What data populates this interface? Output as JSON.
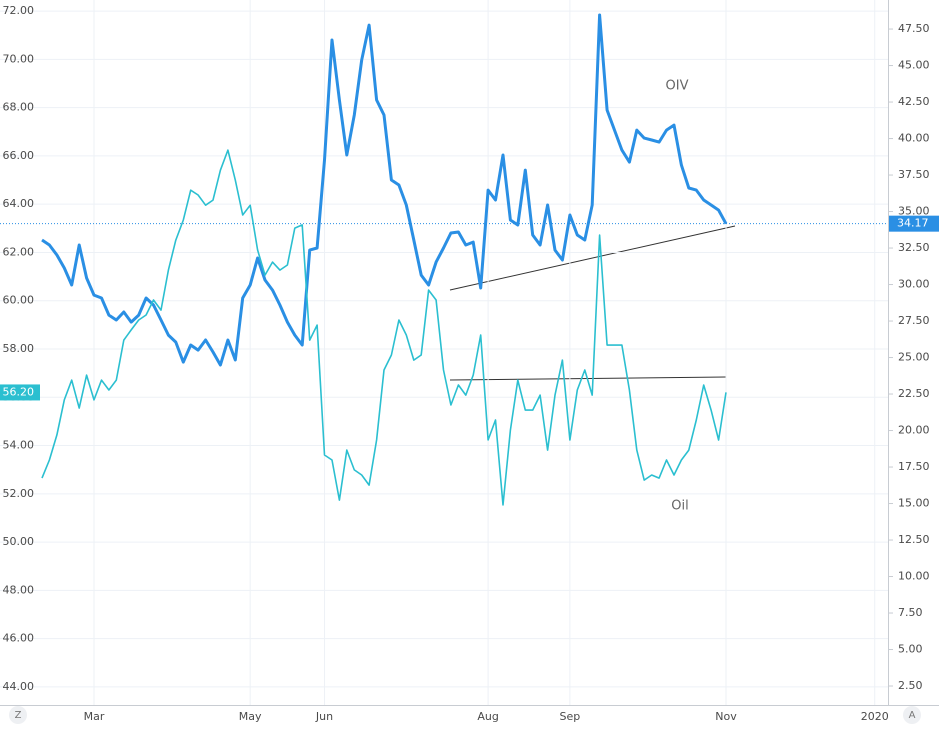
{
  "chart_data": {
    "type": "line",
    "categories": [
      null,
      null,
      null,
      null,
      null,
      null,
      null,
      "Mar",
      null,
      null,
      null,
      null,
      null,
      null,
      null,
      null,
      null,
      null,
      null,
      null,
      null,
      null,
      null,
      null,
      null,
      null,
      null,
      null,
      "May",
      null,
      null,
      null,
      null,
      null,
      null,
      null,
      null,
      null,
      "Jun",
      null,
      null,
      null,
      null,
      null,
      null,
      null,
      null,
      null,
      null,
      null,
      null,
      null,
      null,
      null,
      null,
      null,
      null,
      null,
      null,
      null,
      "Aug",
      null,
      null,
      null,
      null,
      null,
      null,
      null,
      null,
      null,
      null,
      "Sep",
      null,
      null,
      null,
      null,
      null,
      null,
      null,
      null,
      null,
      null,
      null,
      null,
      null,
      null,
      null,
      null,
      null,
      null,
      null,
      null,
      "Nov",
      null,
      null,
      null,
      null,
      null,
      null,
      null,
      null,
      null,
      null,
      null,
      null,
      null,
      null,
      null,
      null,
      null,
      null,
      null,
      "2020",
      null
    ],
    "series": [
      {
        "name": "OIV",
        "color": "#2a8fe4",
        "axis": "y2",
        "values": [
          33.05,
          32.71,
          32.02,
          31.13,
          29.97,
          32.71,
          30.45,
          29.28,
          29.08,
          27.91,
          27.57,
          28.12,
          27.43,
          27.91,
          29.08,
          28.6,
          27.57,
          26.54,
          26.06,
          24.69,
          25.86,
          25.51,
          26.2,
          25.38,
          24.49,
          26.2,
          24.83,
          29.08,
          29.97,
          31.82,
          30.31,
          29.62,
          28.6,
          27.43,
          26.54,
          25.86,
          32.36,
          32.5,
          38.53,
          46.75,
          42.64,
          38.87,
          41.61,
          45.38,
          47.77,
          42.64,
          41.61,
          37.16,
          36.82,
          35.45,
          33.05,
          30.65,
          29.97,
          31.54,
          32.5,
          33.53,
          33.6,
          32.71,
          32.91,
          29.76,
          36.47,
          35.79,
          38.87,
          34.42,
          34.08,
          37.84,
          33.39,
          32.71,
          35.45,
          32.36,
          31.68,
          34.76,
          33.39,
          33.05,
          35.45,
          48.46,
          41.95,
          40.58,
          39.21,
          38.39,
          40.58,
          40.03,
          39.9,
          39.76,
          40.58,
          40.92,
          38.18,
          36.61,
          36.47,
          35.79,
          35.45,
          35.1,
          34.17,
          null,
          null,
          null,
          null,
          null,
          null,
          null,
          null,
          null,
          null,
          null,
          null,
          null,
          null,
          null,
          null,
          null,
          null,
          null,
          null,
          null
        ]
      },
      {
        "name": "Oil",
        "color": "#2bbfd0",
        "axis": "y",
        "values": [
          52.65,
          53.4,
          54.44,
          55.89,
          56.71,
          55.55,
          56.92,
          55.89,
          56.71,
          56.3,
          56.71,
          58.37,
          58.79,
          59.2,
          59.41,
          60.03,
          59.61,
          61.27,
          62.51,
          63.34,
          64.58,
          64.38,
          63.96,
          64.17,
          65.41,
          66.24,
          65.0,
          63.55,
          63.96,
          62.1,
          61.06,
          61.6,
          61.27,
          61.48,
          63.01,
          63.14,
          58.37,
          58.99,
          53.61,
          53.4,
          51.74,
          53.81,
          52.99,
          52.78,
          52.36,
          54.23,
          57.13,
          57.75,
          59.2,
          58.58,
          57.54,
          57.75,
          60.44,
          60.03,
          57.13,
          55.68,
          56.51,
          56.09,
          56.92,
          58.58,
          54.23,
          55.06,
          51.54,
          54.64,
          56.71,
          55.47,
          55.47,
          56.09,
          53.81,
          56.09,
          57.54,
          54.23,
          56.3,
          57.13,
          56.09,
          62.72,
          58.16,
          58.16,
          58.16,
          56.3,
          53.81,
          52.57,
          52.78,
          52.65,
          53.4,
          52.78,
          53.4,
          53.81,
          55.06,
          56.51,
          55.47,
          54.23,
          56.2,
          null,
          null,
          null,
          null,
          null,
          null,
          null,
          null,
          null,
          null,
          null,
          null,
          null,
          null,
          null,
          null,
          null,
          null,
          null,
          null,
          null
        ],
        "value_labels": [
          null,
          null,
          null,
          null,
          null,
          null,
          null,
          null,
          null,
          null,
          null,
          null,
          null,
          null,
          null,
          null,
          null,
          null,
          null,
          null,
          null,
          null,
          null,
          null,
          null,
          null,
          null,
          null,
          null,
          null,
          null,
          null,
          null,
          null,
          null,
          null,
          null,
          null,
          null,
          null,
          null,
          null,
          null,
          null,
          null,
          null,
          null,
          null,
          null,
          null,
          null,
          null,
          null,
          null,
          null,
          null,
          null,
          null,
          null,
          null,
          null,
          null,
          null,
          null,
          null,
          null,
          null,
          null,
          null,
          null,
          null,
          null,
          null,
          null,
          null,
          null,
          null,
          null,
          null,
          null,
          null,
          null,
          null,
          null,
          null,
          null,
          null,
          null,
          null,
          null,
          null,
          null,
          "56.20",
          null,
          null,
          null,
          null,
          null,
          null,
          null,
          null,
          null,
          null,
          null,
          null,
          null,
          null,
          null,
          null,
          null,
          null,
          null,
          null,
          null
        ]
      }
    ],
    "ylim": [
      43.25,
      72.46
    ],
    "yticks": [
      {
        "value": 44,
        "label": "44.00"
      },
      {
        "value": 46,
        "label": "46.00"
      },
      {
        "value": 48,
        "label": "48.00"
      },
      {
        "value": 50,
        "label": "50.00"
      },
      {
        "value": 52,
        "label": "52.00"
      },
      {
        "value": 54,
        "label": "54.00"
      },
      {
        "value": 56,
        "label": "56.00"
      },
      {
        "value": 58,
        "label": "58.00"
      },
      {
        "value": 60,
        "label": "60.00"
      },
      {
        "value": 62,
        "label": "62.00"
      },
      {
        "value": 64,
        "label": "64.00"
      },
      {
        "value": 66,
        "label": "66.00"
      },
      {
        "value": 68,
        "label": "68.00"
      },
      {
        "value": 70,
        "label": "70.00"
      },
      {
        "value": 72,
        "label": "72.00"
      }
    ],
    "y2lim": [
      1.2,
      49.49
    ],
    "y2ticks": [
      {
        "value": 2.5,
        "label": "2.50"
      },
      {
        "value": 5,
        "label": "5.00"
      },
      {
        "value": 7.5,
        "label": "7.50"
      },
      {
        "value": 10,
        "label": "10.00"
      },
      {
        "value": 12.5,
        "label": "12.50"
      },
      {
        "value": 15,
        "label": "15.00"
      },
      {
        "value": 17.5,
        "label": "17.50"
      },
      {
        "value": 20,
        "label": "20.00"
      },
      {
        "value": 22.5,
        "label": "22.50"
      },
      {
        "value": 25,
        "label": "25.00"
      },
      {
        "value": 27.5,
        "label": "27.50"
      },
      {
        "value": 30,
        "label": "30.00"
      },
      {
        "value": 32.5,
        "label": "32.50"
      },
      {
        "value": 35,
        "label": "35.00"
      },
      {
        "value": 37.5,
        "label": "37.50"
      },
      {
        "value": 40,
        "label": "40.00"
      },
      {
        "value": 42.5,
        "label": "42.50"
      },
      {
        "value": 45,
        "label": "45.00"
      },
      {
        "value": 47.5,
        "label": "47.50"
      }
    ],
    "grid": true,
    "annotations": [
      "OIV",
      "Oil"
    ],
    "scale_buttons": [
      "Z",
      "A"
    ]
  }
}
